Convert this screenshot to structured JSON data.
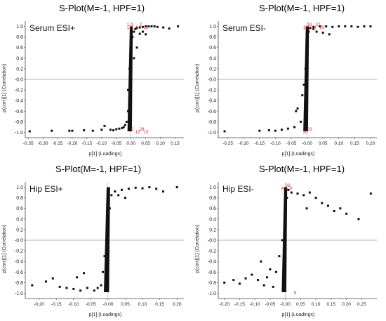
{
  "chart_data": [
    {
      "type": "scatter",
      "title": "S-Plot(M=-1, HPF=1)",
      "annotation": "Serum ESI+",
      "xlabel": "p[1] (Loadings)",
      "ylabel": "p(corr)[1] (Correlation)",
      "xlim": [
        -0.36,
        0.18
      ],
      "ylim": [
        -1.1,
        1.1
      ],
      "xticks": [
        "-0.35",
        "-0.30",
        "-0.25",
        "-0.20",
        "-0.15",
        "-0.10",
        "-0.05",
        "0.00",
        "0.05",
        "0.10",
        "0.15"
      ],
      "yticks": [
        "-1.0",
        "-0.8",
        "-0.6",
        "-0.4",
        "-0.2",
        "-0.0",
        "0.2",
        "0.4",
        "0.6",
        "0.8",
        "1.0"
      ],
      "grid": false,
      "points": [
        [
          -0.345,
          -0.98
        ],
        [
          -0.27,
          -0.97
        ],
        [
          -0.21,
          -0.97
        ],
        [
          -0.2,
          -0.97
        ],
        [
          -0.16,
          -0.96
        ],
        [
          -0.13,
          -0.97
        ],
        [
          -0.1,
          -0.95
        ],
        [
          -0.09,
          -0.88
        ],
        [
          -0.07,
          -0.95
        ],
        [
          -0.06,
          -0.96
        ],
        [
          -0.05,
          -0.94
        ],
        [
          -0.04,
          -0.93
        ],
        [
          -0.03,
          -0.92
        ],
        [
          -0.025,
          -0.9
        ],
        [
          -0.02,
          -0.86
        ],
        [
          -0.015,
          -0.8
        ],
        [
          -0.01,
          -0.6
        ],
        [
          -0.01,
          -0.2
        ],
        [
          -0.005,
          0.2
        ],
        [
          0.0,
          0.5
        ],
        [
          0.005,
          0.8
        ],
        [
          0.01,
          0.9
        ],
        [
          0.015,
          0.95
        ],
        [
          0.02,
          0.97
        ],
        [
          0.03,
          0.98
        ],
        [
          0.04,
          0.99
        ],
        [
          0.05,
          1.0
        ],
        [
          0.06,
          1.0
        ],
        [
          0.07,
          1.0
        ],
        [
          0.08,
          1.0
        ],
        [
          0.09,
          0.99
        ],
        [
          0.11,
          0.98
        ],
        [
          0.13,
          0.96
        ],
        [
          0.16,
          1.0
        ],
        [
          0.04,
          0.9
        ],
        [
          0.05,
          0.85
        ],
        [
          0.03,
          0.86
        ],
        [
          0.02,
          0.6
        ],
        [
          0.01,
          0.4
        ]
      ],
      "highlighted_labels": [
        "12",
        "3",
        "4",
        "2",
        "11",
        "1",
        "5",
        "17",
        "28",
        "15"
      ],
      "colors": {
        "points": "#111111",
        "highlight": "#e02020",
        "zero_line": "#999999"
      }
    },
    {
      "type": "scatter",
      "title": "S-Plot(M=-1, HPF=1)",
      "annotation": "Serum ESI-",
      "xlabel": "p[1] (Loadings)",
      "ylabel": "p(corr)[1] (Correlation)",
      "xlim": [
        -0.28,
        0.22
      ],
      "ylim": [
        -1.1,
        1.1
      ],
      "xticks": [
        "-0.25",
        "-0.20",
        "-0.15",
        "-0.10",
        "-0.05",
        "-0.00",
        "0.05",
        "0.10",
        "0.15",
        "0.20"
      ],
      "yticks": [
        "-1.0",
        "-0.8",
        "-0.6",
        "-0.4",
        "-0.2",
        "-0.0",
        "0.2",
        "0.4",
        "0.6",
        "0.8",
        "1.0"
      ],
      "grid": false,
      "points": [
        [
          -0.26,
          -0.98
        ],
        [
          -0.15,
          -0.97
        ],
        [
          -0.12,
          -0.96
        ],
        [
          -0.1,
          -0.97
        ],
        [
          -0.08,
          -0.95
        ],
        [
          -0.06,
          -0.93
        ],
        [
          -0.04,
          -0.9
        ],
        [
          -0.035,
          -0.6
        ],
        [
          -0.03,
          -0.55
        ],
        [
          -0.02,
          -0.8
        ],
        [
          -0.015,
          -0.3
        ],
        [
          -0.01,
          -0.1
        ],
        [
          -0.005,
          0.2
        ],
        [
          0.0,
          0.6
        ],
        [
          0.005,
          0.9
        ],
        [
          0.01,
          0.97
        ],
        [
          0.02,
          0.99
        ],
        [
          0.04,
          1.0
        ],
        [
          0.06,
          1.0
        ],
        [
          0.08,
          0.99
        ],
        [
          0.1,
          1.0
        ],
        [
          0.12,
          1.0
        ],
        [
          0.14,
          1.0
        ],
        [
          0.16,
          0.99
        ],
        [
          0.18,
          1.0
        ],
        [
          0.2,
          1.0
        ],
        [
          0.03,
          0.9
        ],
        [
          0.05,
          0.88
        ],
        [
          0.07,
          0.85
        ],
        [
          0.02,
          0.95
        ]
      ],
      "highlighted_labels": [
        "10",
        "13",
        "14",
        "27",
        "29",
        "20",
        "23"
      ],
      "colors": {
        "points": "#111111",
        "highlight": "#e02020",
        "zero_line": "#999999"
      }
    },
    {
      "type": "scatter",
      "title": "S-Plot(M=-1, HPF=1)",
      "annotation": "Hip ESI+",
      "xlabel": "p[1] (Loadings)",
      "ylabel": "p(corr)[1] (Correlation)",
      "xlim": [
        -0.24,
        0.22
      ],
      "ylim": [
        -1.1,
        1.1
      ],
      "xticks": [
        "-0.20",
        "-0.15",
        "-0.10",
        "-0.05",
        "-0.00",
        "0.05",
        "0.10",
        "0.15",
        "0.20"
      ],
      "yticks": [
        "-1.0",
        "-0.8",
        "-0.6",
        "-0.4",
        "-0.2",
        "-0.0",
        "0.2",
        "0.4",
        "0.6",
        "0.8",
        "1.0"
      ],
      "grid": false,
      "points": [
        [
          -0.22,
          -0.85
        ],
        [
          -0.18,
          -0.78
        ],
        [
          -0.16,
          -0.72
        ],
        [
          -0.14,
          -0.88
        ],
        [
          -0.12,
          -0.9
        ],
        [
          -0.1,
          -0.92
        ],
        [
          -0.08,
          -0.95
        ],
        [
          -0.06,
          -0.9
        ],
        [
          -0.04,
          -0.95
        ],
        [
          -0.03,
          -0.9
        ],
        [
          -0.02,
          -0.85
        ],
        [
          -0.015,
          -0.6
        ],
        [
          -0.01,
          -0.3
        ],
        [
          -0.005,
          0.0
        ],
        [
          0.0,
          0.3
        ],
        [
          0.005,
          0.6
        ],
        [
          0.01,
          0.85
        ],
        [
          0.02,
          0.92
        ],
        [
          0.04,
          0.95
        ],
        [
          0.06,
          0.97
        ],
        [
          0.08,
          0.99
        ],
        [
          0.1,
          0.98
        ],
        [
          0.12,
          1.0
        ],
        [
          0.14,
          0.97
        ],
        [
          0.16,
          0.92
        ],
        [
          0.2,
          1.0
        ],
        [
          0.03,
          0.85
        ],
        [
          0.05,
          0.8
        ],
        [
          -0.07,
          -0.62
        ],
        [
          -0.09,
          -0.7
        ]
      ],
      "highlighted_labels": [],
      "colors": {
        "points": "#111111",
        "highlight": "#e02020",
        "zero_line": "#999999"
      }
    },
    {
      "type": "scatter",
      "title": "S-Plot(M=-1, HPF=1)",
      "annotation": "Hip ESI-",
      "xlabel": "p[1] (Loadings)",
      "ylabel": "p(corr)[1] (Correlation)",
      "xlim": [
        -0.22,
        0.3
      ],
      "ylim": [
        -1.1,
        1.1
      ],
      "xticks": [
        "-0.20",
        "-0.15",
        "-0.10",
        "-0.05",
        "-0.00",
        "0.05",
        "0.10",
        "0.15",
        "0.20",
        "0.25"
      ],
      "yticks": [
        "-1.0",
        "-0.8",
        "-0.6",
        "-0.4",
        "-0.2",
        "-0.0",
        "0.2",
        "0.4",
        "0.6",
        "0.8",
        "1.0"
      ],
      "grid": false,
      "points": [
        [
          -0.2,
          -0.8
        ],
        [
          -0.17,
          -0.75
        ],
        [
          -0.15,
          -0.82
        ],
        [
          -0.13,
          -0.72
        ],
        [
          -0.11,
          -0.65
        ],
        [
          -0.09,
          -0.75
        ],
        [
          -0.07,
          -0.85
        ],
        [
          -0.06,
          -0.7
        ],
        [
          -0.05,
          -0.55
        ],
        [
          -0.04,
          -0.88
        ],
        [
          -0.03,
          -0.6
        ],
        [
          -0.02,
          -0.3
        ],
        [
          -0.01,
          0.0
        ],
        [
          0.0,
          0.4
        ],
        [
          0.005,
          0.8
        ],
        [
          0.01,
          0.95
        ],
        [
          0.02,
          0.9
        ],
        [
          0.04,
          0.88
        ],
        [
          0.06,
          0.85
        ],
        [
          0.08,
          0.9
        ],
        [
          0.1,
          0.8
        ],
        [
          0.12,
          0.7
        ],
        [
          0.14,
          0.65
        ],
        [
          0.16,
          0.55
        ],
        [
          0.18,
          0.6
        ],
        [
          0.2,
          0.5
        ],
        [
          0.24,
          0.4
        ],
        [
          0.28,
          0.88
        ],
        [
          0.07,
          0.6
        ],
        [
          -0.08,
          -0.4
        ]
      ],
      "highlighted_labels": [
        "4",
        "26",
        "6",
        "8"
      ],
      "colors": {
        "points": "#111111",
        "highlight": "#e02020",
        "zero_line": "#999999"
      }
    }
  ]
}
